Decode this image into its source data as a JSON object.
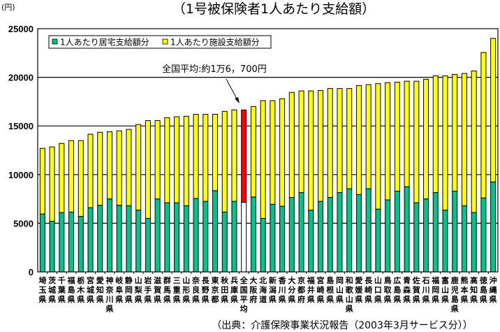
{
  "chart_data": {
    "type": "bar",
    "stacked": true,
    "title": "（1号被保険者1人あたり支給額）",
    "ylabel": "(円)",
    "xlabel": "",
    "ylim": [
      0,
      25000
    ],
    "yticks": [
      0,
      5000,
      10000,
      15000,
      20000,
      25000
    ],
    "ytick_labels": [
      "0",
      "5000",
      "10000",
      "15000",
      "20000",
      "25000"
    ],
    "grid": true,
    "legend_position": "top-left",
    "categories": [
      "埼玉県",
      "茨城県",
      "千葉県",
      "福島県",
      "栃木県",
      "宮城県",
      "愛知県",
      "神奈川県",
      "岐阜県",
      "静岡県",
      "山梨県",
      "岩手県",
      "滋賀県",
      "群馬県",
      "三重県",
      "山形県",
      "奈良県",
      "長野県",
      "東京都",
      "秋田県",
      "兵庫県",
      "全国平均",
      "大阪府",
      "北海道",
      "新潟県",
      "香川県",
      "大分県",
      "京都府",
      "福井県",
      "宮崎県",
      "島根県",
      "岡山県",
      "和歌山県",
      "愛媛県",
      "長崎県",
      "山口県",
      "鳥取県",
      "広島県",
      "青森県",
      "佐賀県",
      "石川県",
      "福岡県",
      "富山県",
      "鹿児島県",
      "熊本県",
      "高知県",
      "徳島県",
      "沖縄県"
    ],
    "series": [
      {
        "name": "1人あたり居宅支給額分",
        "color": "#00c48c",
        "values": [
          5950,
          5200,
          6100,
          6150,
          5700,
          6600,
          6850,
          7500,
          6850,
          6800,
          6350,
          5500,
          7500,
          7100,
          7100,
          6800,
          7550,
          7250,
          8350,
          6150,
          7250,
          7150,
          7700,
          5500,
          6950,
          6750,
          7650,
          8150,
          6350,
          7250,
          7650,
          8150,
          8550,
          7950,
          8550,
          6450,
          7400,
          8300,
          8750,
          7100,
          7500,
          8150,
          6350,
          8300,
          6800,
          6100,
          7600,
          9250
        ]
      },
      {
        "name": "1人あたり施設支給額分",
        "color": "#ffff00",
        "values": [
          6750,
          7650,
          7100,
          7350,
          7800,
          7550,
          7500,
          6900,
          7650,
          7850,
          8800,
          10050,
          8050,
          8750,
          8850,
          9200,
          8650,
          8950,
          7850,
          10350,
          9400,
          9500,
          9300,
          12100,
          10650,
          11050,
          10800,
          10450,
          12250,
          11400,
          11200,
          10700,
          10300,
          11200,
          10700,
          12900,
          12050,
          11200,
          10850,
          12500,
          12300,
          12000,
          13800,
          12000,
          13600,
          14550,
          14950,
          14750
        ]
      }
    ],
    "highlight": {
      "category": "全国平均",
      "home_color": "#ffffff",
      "facility_color": "#ff0000"
    },
    "annotation": {
      "text": "全国平均:約1万6，700円",
      "target": "全国平均"
    },
    "source": "（出典：介護保険事業状況報告（2003年3月サービス分））"
  }
}
